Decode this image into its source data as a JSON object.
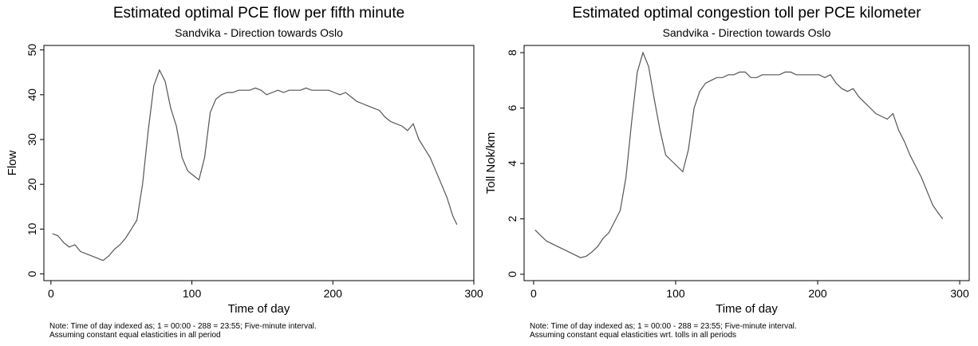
{
  "chart_data": [
    {
      "type": "line",
      "title": "Estimated optimal PCE flow per fifth minute",
      "subtitle": "Sandvika - Direction towards Oslo",
      "xlabel": "Time of day",
      "ylabel": "Flow",
      "note": [
        "Note: Time of day indexed as; 1 = 00:00 - 288 = 23:55; Five-minute interval.",
        "Assuming constant equal elasticities in all period"
      ],
      "color": "#555555",
      "x": [
        1,
        5,
        9,
        13,
        17,
        21,
        25,
        29,
        33,
        37,
        41,
        45,
        49,
        53,
        57,
        61,
        65,
        69,
        73,
        77,
        81,
        85,
        89,
        93,
        97,
        101,
        105,
        109,
        113,
        117,
        121,
        125,
        129,
        133,
        137,
        141,
        145,
        149,
        153,
        157,
        161,
        165,
        169,
        173,
        177,
        181,
        185,
        189,
        193,
        197,
        201,
        205,
        209,
        213,
        217,
        221,
        225,
        229,
        233,
        237,
        241,
        245,
        249,
        253,
        257,
        261,
        265,
        269,
        273,
        277,
        281,
        285,
        288
      ],
      "values": [
        9,
        8.5,
        7,
        6,
        6.5,
        5,
        4.5,
        4,
        3.5,
        3,
        4,
        5.5,
        6.5,
        8,
        10,
        12,
        20,
        32,
        42,
        45.5,
        43,
        37,
        33,
        26,
        23,
        22,
        21,
        26,
        36,
        39,
        40,
        40.5,
        40.5,
        41,
        41,
        41,
        41.5,
        41,
        40,
        40.5,
        41,
        40.5,
        41,
        41,
        41,
        41.5,
        41,
        41,
        41,
        41,
        40.5,
        40,
        40.5,
        39.5,
        38.5,
        38,
        37.5,
        37,
        36.5,
        35,
        34,
        33.5,
        33,
        32,
        33.5,
        30,
        28,
        26,
        23,
        20,
        17,
        13,
        11
      ],
      "xlim": [
        -5,
        300
      ],
      "ylim": [
        -1.5,
        51
      ],
      "xticks": [
        0,
        100,
        200,
        300
      ],
      "yticks": [
        0,
        10,
        20,
        30,
        40,
        50
      ]
    },
    {
      "type": "line",
      "title": "Estimated optimal congestion toll per PCE kilometer",
      "subtitle": "Sandvika - Direction towards Oslo",
      "xlabel": "Time of day",
      "ylabel": "Toll Nok/km",
      "note": [
        "Note: Time of day indexed as; 1 = 00:00 - 288 = 23:55; Five-minute interval.",
        "Assuming constant equal elasticities wrt. tolls in all periods"
      ],
      "color": "#555555",
      "x": [
        1,
        5,
        9,
        13,
        17,
        21,
        25,
        29,
        33,
        37,
        41,
        45,
        49,
        53,
        57,
        61,
        65,
        69,
        73,
        77,
        81,
        85,
        89,
        93,
        97,
        101,
        105,
        109,
        113,
        117,
        121,
        125,
        129,
        133,
        137,
        141,
        145,
        149,
        153,
        157,
        161,
        165,
        169,
        173,
        177,
        181,
        185,
        189,
        193,
        197,
        201,
        205,
        209,
        213,
        217,
        221,
        225,
        229,
        233,
        237,
        241,
        245,
        249,
        253,
        257,
        261,
        265,
        269,
        273,
        277,
        281,
        285,
        288
      ],
      "values": [
        1.6,
        1.4,
        1.2,
        1.1,
        1.0,
        0.9,
        0.8,
        0.7,
        0.6,
        0.65,
        0.8,
        1.0,
        1.3,
        1.5,
        1.9,
        2.3,
        3.5,
        5.5,
        7.3,
        8.0,
        7.5,
        6.3,
        5.2,
        4.3,
        4.1,
        3.9,
        3.7,
        4.5,
        6.0,
        6.6,
        6.9,
        7.0,
        7.1,
        7.1,
        7.2,
        7.2,
        7.3,
        7.3,
        7.1,
        7.1,
        7.2,
        7.2,
        7.2,
        7.2,
        7.3,
        7.3,
        7.2,
        7.2,
        7.2,
        7.2,
        7.2,
        7.1,
        7.2,
        6.9,
        6.7,
        6.6,
        6.7,
        6.4,
        6.2,
        6.0,
        5.8,
        5.7,
        5.6,
        5.8,
        5.2,
        4.8,
        4.3,
        3.9,
        3.5,
        3.0,
        2.5,
        2.2,
        2.0
      ],
      "xlim": [
        -6.7,
        306.7
      ],
      "ylim": [
        -0.23,
        8.26
      ],
      "xticks": [
        0,
        100,
        200,
        300
      ],
      "yticks": [
        0,
        2,
        4,
        6,
        8
      ]
    }
  ]
}
